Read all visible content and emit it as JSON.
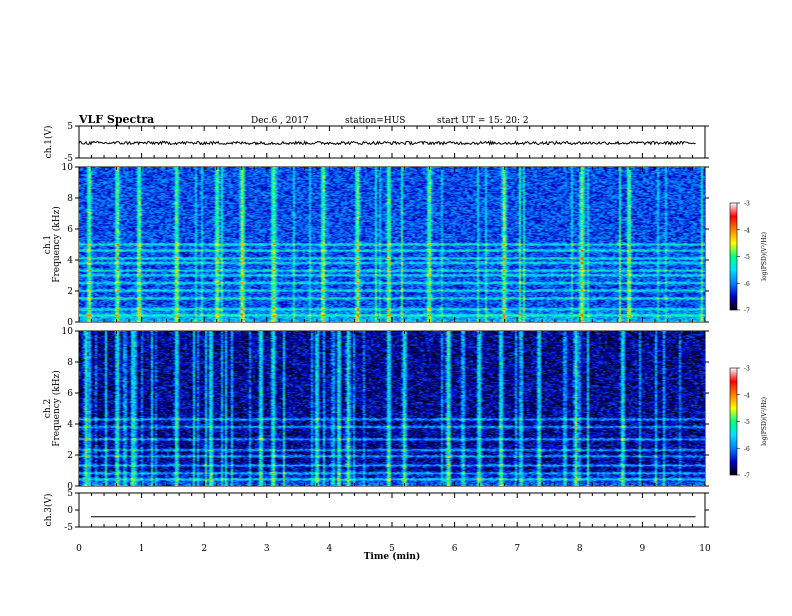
{
  "header": {
    "title": "VLF Spectra",
    "date": "Dec.6 , 2017",
    "station": "station=HUS",
    "start": "start UT = 15: 20: 2"
  },
  "colorbar": {
    "label": "log(PSD)(V²/Hz)",
    "ticks": [
      "-3",
      "-4",
      "-5",
      "-6",
      "-7"
    ],
    "stops": [
      "#000000",
      "#0000cc",
      "#0080ff",
      "#00e0ff",
      "#00ff80",
      "#ffff00",
      "#ff8000",
      "#ff0000",
      "#ffffff"
    ]
  },
  "chart_data": [
    {
      "type": "line",
      "id": "ch1",
      "ylabel": "ch.1(V)",
      "ylim": [
        -5,
        5
      ],
      "yticks": [
        "5",
        "-5"
      ],
      "xlim": [
        0,
        10
      ],
      "description_values": {
        "baseline_V": -0.3,
        "noise_amplitude_V": 0.5
      }
    },
    {
      "type": "heatmap",
      "id": "ch1_spec",
      "ylabel": "ch.1 Frequency (kHz)",
      "ylim": [
        0,
        10
      ],
      "yticks": [
        "10",
        "8",
        "6",
        "4",
        "2",
        "0"
      ],
      "xlim": [
        0,
        10
      ],
      "zlim": [
        -7,
        -3
      ],
      "background_level": -6.2,
      "horizontal_bands_kHz": [
        0.4,
        0.8,
        1.5,
        2.0,
        2.5,
        3.0,
        3.3,
        3.8,
        4.1,
        4.6,
        5.0
      ],
      "bright_bursts_min": [
        0.15,
        0.6,
        0.95,
        1.55,
        2.2,
        2.6,
        3.1,
        3.9,
        4.45,
        4.95,
        5.6,
        6.8,
        8.05,
        8.8
      ]
    },
    {
      "type": "heatmap",
      "id": "ch2_spec",
      "ylabel": "ch.2 Frequency (kHz)",
      "ylim": [
        0,
        10
      ],
      "yticks": [
        "10",
        "8",
        "6",
        "4",
        "2",
        "0"
      ],
      "xlim": [
        0,
        10
      ],
      "zlim": [
        -7,
        -3
      ],
      "background_level": -6.6,
      "horizontal_bands_kHz": [
        0.4,
        0.8,
        1.3,
        1.9,
        2.3,
        3.0,
        3.8,
        4.3
      ],
      "bright_bursts_min": [
        0.1,
        0.6,
        0.85,
        1.55,
        2.1,
        2.9,
        3.1,
        3.8,
        4.3,
        4.95,
        5.2,
        5.9,
        6.4,
        6.75,
        7.95,
        8.7
      ]
    },
    {
      "type": "line",
      "id": "ch3",
      "ylabel": "ch.3(V)",
      "ylim": [
        -5,
        5
      ],
      "yticks": [
        "5",
        "0",
        "-5"
      ],
      "xlim": [
        0,
        10
      ],
      "description_values": {
        "baseline_V": -2.0
      }
    }
  ],
  "xaxis": {
    "label": "Time (min)",
    "ticks": [
      "0",
      "1",
      "2",
      "3",
      "4",
      "5",
      "6",
      "7",
      "8",
      "9",
      "10"
    ]
  }
}
